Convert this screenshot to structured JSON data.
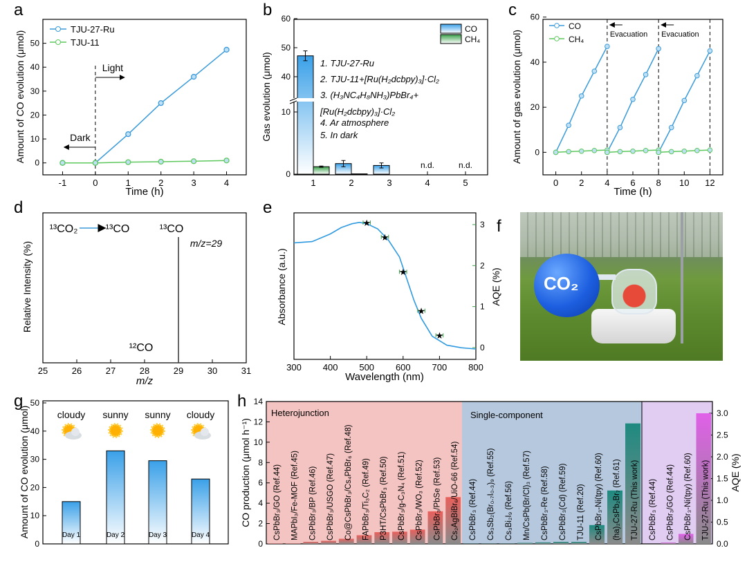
{
  "panel_labels": [
    "a",
    "b",
    "c",
    "d",
    "e",
    "f",
    "g",
    "h"
  ],
  "chart_data": [
    {
      "id": "a",
      "type": "line",
      "xlabel": "Time (h)",
      "ylabel": "Amount of CO evolution (μmol)",
      "xlim": [
        -1.6,
        4.6
      ],
      "ylim": [
        -5,
        60
      ],
      "xticks": [
        "-1",
        "0",
        "1",
        "2",
        "3",
        "4"
      ],
      "yticks": [
        "0",
        "10",
        "20",
        "30",
        "40",
        "50"
      ],
      "x": [
        -1,
        0,
        1,
        2,
        3,
        4
      ],
      "series": [
        {
          "name": "TJU-27-Ru",
          "color": "#3a9ad9",
          "values": [
            0,
            0,
            12,
            25,
            36,
            47.3
          ]
        },
        {
          "name": "TJU-11",
          "color": "#5cc85c",
          "values": [
            0,
            0,
            0.3,
            0.5,
            0.7,
            1.0
          ]
        }
      ],
      "annotations": {
        "light": "Light",
        "dark": "Dark"
      },
      "legend": "top-left"
    },
    {
      "id": "b",
      "type": "bar",
      "ylabel": "Gas evolution (μmol)",
      "categories": [
        "1",
        "2",
        "3",
        "4",
        "5"
      ],
      "yticks": [
        "0",
        "10",
        "40",
        "50",
        "60"
      ],
      "y_break": [
        12,
        33
      ],
      "series": [
        {
          "name": "CO",
          "color": "#3aa0e8",
          "values": [
            47.2,
            1.7,
            1.4,
            0,
            0
          ],
          "errors": [
            1.7,
            0.5,
            0.4,
            0,
            0
          ]
        },
        {
          "name": "CH₄",
          "color": "#3aa24a",
          "values": [
            1.2,
            0.05,
            0,
            0,
            0
          ],
          "errors": [
            0.1,
            0,
            0,
            0,
            0
          ]
        }
      ],
      "legend_labels": [
        "CO",
        "CH₄"
      ],
      "conditions": [
        "1. TJU-27-Ru",
        "2. TJU-11+[Ru(H₂dcbpy)₃]·Cl₂",
        "3. (H₃NC₄H₈NH₃)PbBr₄+",
        "[Ru(H₂dcbpy)₃]·Cl₂",
        "4. Ar atmosphere",
        "5. In dark"
      ],
      "nd_labels": [
        "n.d.",
        "n.d."
      ],
      "legend": "top-right"
    },
    {
      "id": "c",
      "type": "line",
      "xlabel": "Time (h)",
      "ylabel": "Amount of gas evolution (μmol)",
      "xlim": [
        -1,
        13
      ],
      "ylim": [
        -10,
        59
      ],
      "xticks": [
        "0",
        "2",
        "4",
        "6",
        "8",
        "10",
        "12"
      ],
      "yticks": [
        "0",
        "20",
        "40",
        "60"
      ],
      "series": [
        {
          "name": "CO",
          "color": "#3a9ad9",
          "cycles": [
            {
              "x": [
                0,
                1,
                2,
                3,
                4
              ],
              "y": [
                0,
                12,
                25,
                36,
                47
              ]
            },
            {
              "x": [
                4,
                5,
                6,
                7,
                8
              ],
              "y": [
                0,
                11,
                23.5,
                34.5,
                46
              ]
            },
            {
              "x": [
                8,
                9,
                10,
                11,
                12
              ],
              "y": [
                0,
                11,
                23,
                34,
                45
              ]
            }
          ]
        },
        {
          "name": "CH₄",
          "color": "#5cc85c",
          "cycles": [
            {
              "x": [
                0,
                1,
                2,
                3,
                4
              ],
              "y": [
                0,
                0.3,
                0.5,
                0.8,
                1.0
              ]
            },
            {
              "x": [
                4,
                5,
                6,
                7,
                8
              ],
              "y": [
                0,
                0.3,
                0.5,
                0.8,
                1.0
              ]
            },
            {
              "x": [
                8,
                9,
                10,
                11,
                12
              ],
              "y": [
                0,
                0.3,
                0.5,
                0.8,
                1.0
              ]
            }
          ]
        }
      ],
      "evacuation_at": [
        4,
        8,
        12
      ],
      "annotations": [
        "Evacuation",
        "Evacuation"
      ],
      "legend": "top-left"
    },
    {
      "id": "d",
      "type": "bar",
      "xlabel": "m/z",
      "ylabel": "Relative Intensity (%)",
      "xlim": [
        25,
        31
      ],
      "xticks": [
        "25",
        "26",
        "27",
        "28",
        "29",
        "30",
        "31"
      ],
      "peaks": [
        {
          "x": 29,
          "value": 100
        }
      ],
      "annotations": {
        "co2": "¹³CO₂",
        "arrow_co": "¹³CO",
        "peak_label": "¹³CO",
        "mz": "m/z=29",
        "c12": "¹²CO"
      }
    },
    {
      "id": "e",
      "type": "line",
      "xlabel": "Wavelength (nm)",
      "ylabel": "Absorbance (a.u.)",
      "y2label": "AQE (%)",
      "xlim": [
        300,
        800
      ],
      "xticks": [
        "300",
        "400",
        "500",
        "600",
        "700",
        "800"
      ],
      "y2ticks": [
        "0",
        "1",
        "2",
        "3"
      ],
      "y2lim": [
        0,
        3.3
      ],
      "absorbance": {
        "x": [
          300,
          350,
          400,
          430,
          460,
          480,
          500,
          530,
          560,
          590,
          610,
          630,
          650,
          680,
          720,
          760,
          800
        ],
        "y": [
          0.83,
          0.84,
          0.9,
          0.95,
          0.98,
          0.99,
          0.98,
          0.94,
          0.85,
          0.72,
          0.55,
          0.38,
          0.24,
          0.1,
          0.03,
          0.01,
          0.0
        ]
      },
      "aqe": {
        "x": [
          500,
          550,
          600,
          650,
          700
        ],
        "y": [
          3.05,
          2.7,
          1.85,
          0.9,
          0.3
        ],
        "xerr": [
          10,
          10,
          10,
          10,
          10
        ]
      }
    },
    {
      "id": "g",
      "type": "bar",
      "ylabel": "Amount of CO evolution (μmol)",
      "categories": [
        "Day 1",
        "Day 2",
        "Day 3",
        "Day 4"
      ],
      "values": [
        15,
        33,
        29.5,
        23
      ],
      "weather": [
        "cloudy",
        "sunny",
        "sunny",
        "cloudy"
      ],
      "ylim": [
        0,
        50
      ],
      "yticks": [
        "0",
        "10",
        "20",
        "30",
        "40",
        "50"
      ]
    },
    {
      "id": "h",
      "type": "bar",
      "ylabel": "CO production (μmol h⁻¹)",
      "y2label": "AQE (%)",
      "ylim": [
        0,
        14
      ],
      "yticks": [
        "0",
        "2",
        "4",
        "6",
        "8",
        "10",
        "12",
        "14"
      ],
      "y2lim": [
        0,
        3.27
      ],
      "y2ticks": [
        "0.0",
        "0.5",
        "1.0",
        "1.5",
        "2.0",
        "2.5",
        "3.0"
      ],
      "groups": [
        {
          "name": "Heterojunction",
          "color": "#e8605c",
          "axis": "left",
          "bars": [
            {
              "label": "CsPbBr₃/GO (Ref.44)",
              "value": 0.05
            },
            {
              "label": "MAPbI₃/Fe-MOF (Ref.45)",
              "value": 0.05
            },
            {
              "label": "CsPbBr₃/BP (Ref.46)",
              "value": 0.2
            },
            {
              "label": "CsPbBr₃/USGO (Ref.47)",
              "value": 0.3
            },
            {
              "label": "Co@CsPbBr₃/Cs₄PbBr₆ (Ref.48)",
              "value": 0.5
            },
            {
              "label": "FAPbBr₃/Ti₃C₂ (Ref.49)",
              "value": 0.85
            },
            {
              "label": "P3HT/CsPbBr₃ (Ref.50)",
              "value": 1.15
            },
            {
              "label": "CsPbBr₃/g-C₃N₄ (Ref.51)",
              "value": 1.2
            },
            {
              "label": "CsPbBr₃/WO₃ (Ref.52)",
              "value": 1.4
            },
            {
              "label": "CsPbBr₃/PbSe (Ref.53)",
              "value": 3.2
            },
            {
              "label": "Cs₂AgBiBr₆/UiO-66 (Ref.54)",
              "value": 4.6
            }
          ]
        },
        {
          "name": "Single-component",
          "color": "#1e8a80",
          "axis": "left",
          "bars": [
            {
              "label": "CsPbBr₃ (Ref.44)",
              "value": 0.02
            },
            {
              "label": "Cs₃Sb₂(Br₀.₇I₀.₃)₉ (Ref.55)",
              "value": 0.02
            },
            {
              "label": "Cs₃Bi₂I₉ (Ref.56)",
              "value": 0.02
            },
            {
              "label": "Mn/CsPb(Br/Cl)₃ (Ref.57)",
              "value": 0.1
            },
            {
              "label": "CsPbBr₃-Re (Ref.58)",
              "value": 0.15
            },
            {
              "label": "CsPbBr₃(Cd) (Ref.59)",
              "value": 0.2
            },
            {
              "label": "TJU-11 (Ref.20)",
              "value": 0.2
            },
            {
              "label": "CsPbBr₃-Ni(tpy) (Ref.60)",
              "value": 1.85
            },
            {
              "label": "(ha)₂CsPb₂Br₇ (Ref.61)",
              "value": 5.25
            },
            {
              "label": "TJU-27-Ru (This work)",
              "value": 11.85,
              "highlight": true
            }
          ]
        },
        {
          "name": "",
          "color": "#e060e8",
          "axis": "right",
          "bars": [
            {
              "label": "CsPbBr₃ (Ref.44)",
              "value": 0.0
            },
            {
              "label": "CsPbBr₃/GO (Ref.44)",
              "value": 0.03
            },
            {
              "label": "CsPbBr₃-Ni(tpy) (Ref.60)",
              "value": 0.23
            },
            {
              "label": "TJU-27-Ru (This work)",
              "value": 3.0,
              "highlight": true
            }
          ]
        }
      ]
    }
  ],
  "photo": {
    "balloon_label": "CO₂"
  }
}
